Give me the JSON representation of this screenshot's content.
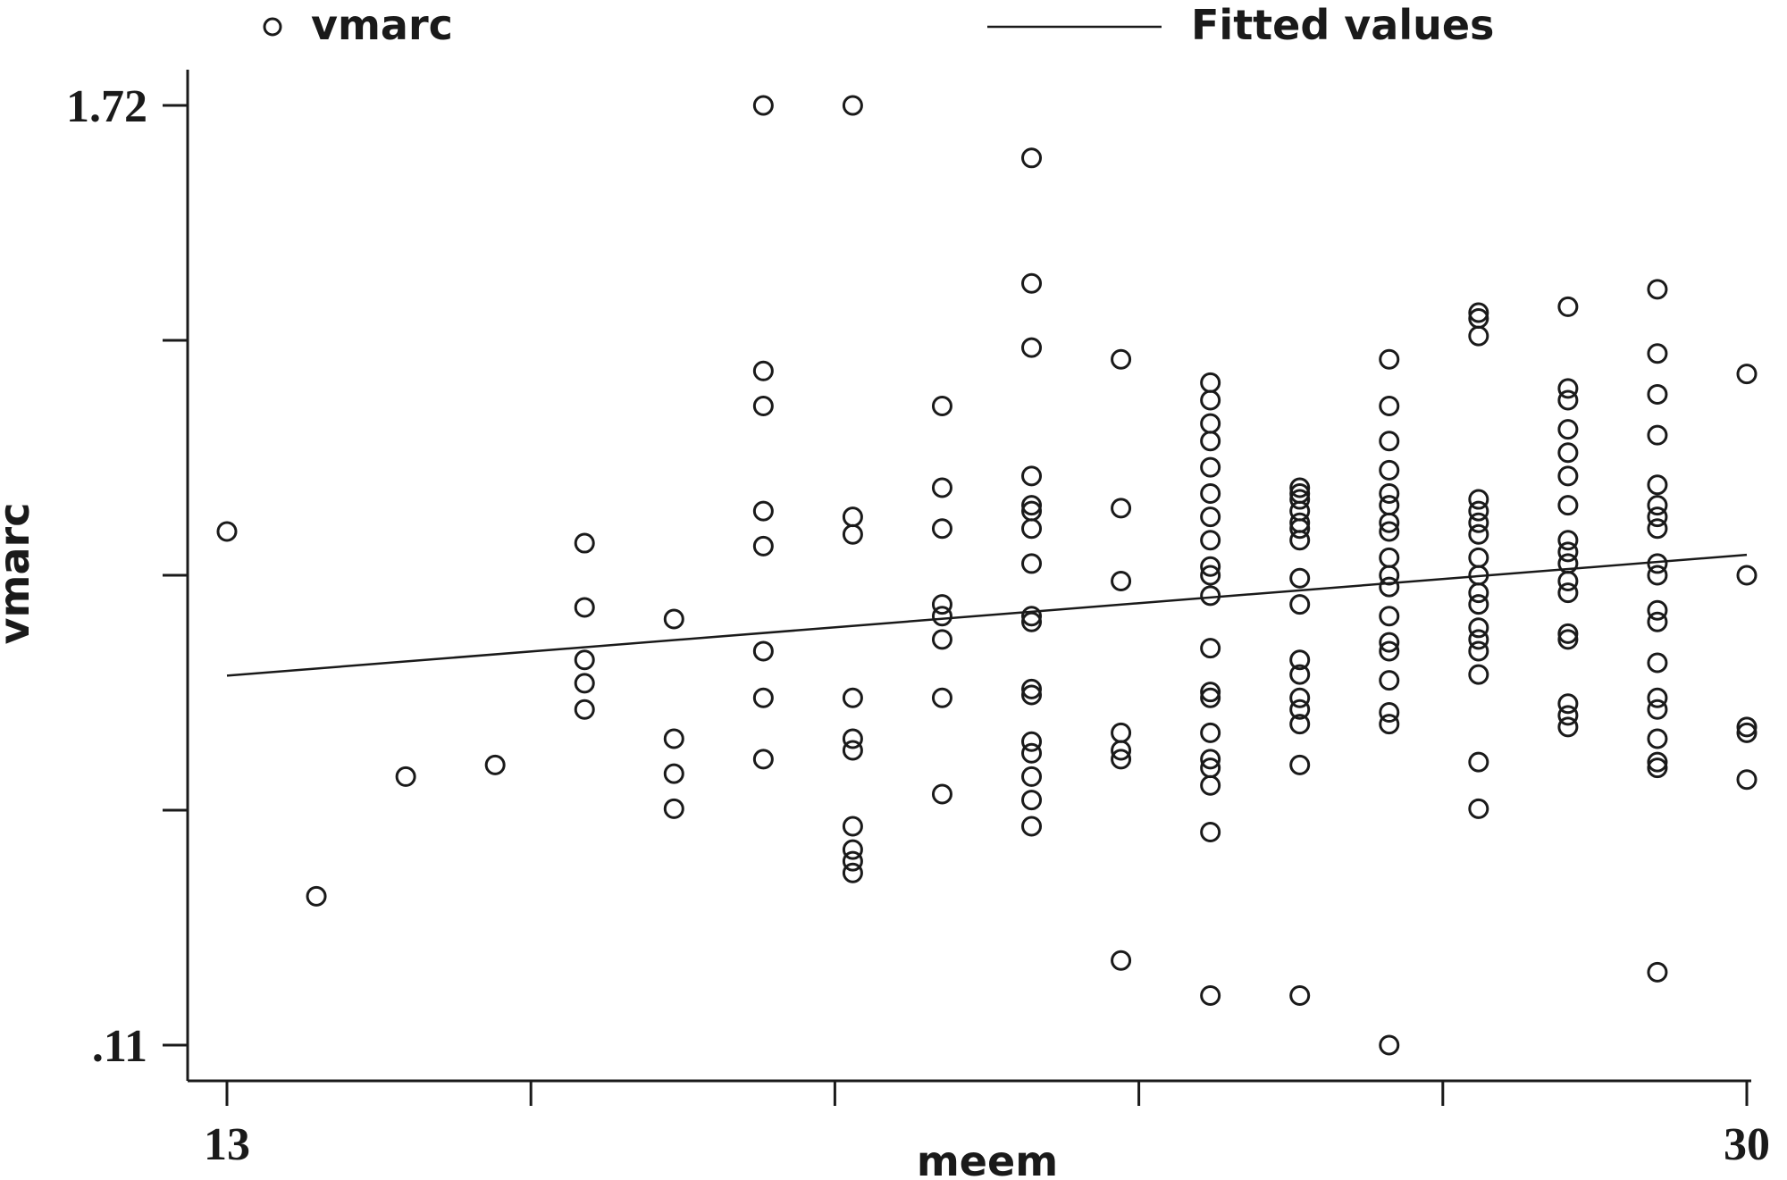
{
  "chart_data": {
    "type": "scatter",
    "xlabel": "meem",
    "ylabel": "vmarc",
    "xlim": [
      12.9,
      30.1
    ],
    "ylim": [
      0.11,
      1.72
    ],
    "x_ticks": [
      13,
      16.4,
      19.8,
      23.2,
      26.6,
      30
    ],
    "x_tick_labels": [
      "13",
      "",
      "",
      "",
      "",
      "30"
    ],
    "y_ticks": [
      0.11,
      0.5125,
      0.915,
      1.3175,
      1.72
    ],
    "y_tick_labels": [
      ".11",
      "",
      "",
      "",
      "1.72"
    ],
    "legend_position": "top",
    "series": [
      {
        "name": "vmarc",
        "kind": "markers",
        "points": [
          [
            13,
            0.99
          ],
          [
            14,
            0.365
          ],
          [
            15,
            0.57
          ],
          [
            16,
            0.59
          ],
          [
            17,
            0.97
          ],
          [
            17,
            0.86
          ],
          [
            17,
            0.77
          ],
          [
            17,
            0.73
          ],
          [
            17,
            0.685
          ],
          [
            18,
            0.84
          ],
          [
            18,
            0.635
          ],
          [
            18,
            0.575
          ],
          [
            18,
            0.515
          ],
          [
            19,
            1.72
          ],
          [
            19,
            1.265
          ],
          [
            19,
            1.205
          ],
          [
            19,
            1.025
          ],
          [
            19,
            0.965
          ],
          [
            19,
            0.785
          ],
          [
            19,
            0.705
          ],
          [
            19,
            0.6
          ],
          [
            20,
            1.72
          ],
          [
            20,
            1.015
          ],
          [
            20,
            0.985
          ],
          [
            20,
            0.705
          ],
          [
            20,
            0.635
          ],
          [
            20,
            0.615
          ],
          [
            20,
            0.485
          ],
          [
            20,
            0.445
          ],
          [
            20,
            0.425
          ],
          [
            20,
            0.405
          ],
          [
            21,
            1.205
          ],
          [
            21,
            1.065
          ],
          [
            21,
            0.995
          ],
          [
            21,
            0.865
          ],
          [
            21,
            0.845
          ],
          [
            21,
            0.805
          ],
          [
            21,
            0.705
          ],
          [
            21,
            0.54
          ],
          [
            22,
            1.63
          ],
          [
            22,
            1.415
          ],
          [
            22,
            1.305
          ],
          [
            22,
            1.085
          ],
          [
            22,
            1.025
          ],
          [
            22,
            1.035
          ],
          [
            22,
            0.995
          ],
          [
            22,
            0.935
          ],
          [
            22,
            0.845
          ],
          [
            22,
            0.835
          ],
          [
            22,
            0.72
          ],
          [
            22,
            0.71
          ],
          [
            22,
            0.63
          ],
          [
            22,
            0.61
          ],
          [
            22,
            0.57
          ],
          [
            22,
            0.53
          ],
          [
            22,
            0.485
          ],
          [
            23,
            1.285
          ],
          [
            23,
            1.03
          ],
          [
            23,
            0.905
          ],
          [
            23,
            0.645
          ],
          [
            23,
            0.615
          ],
          [
            23,
            0.6
          ],
          [
            23,
            0.255
          ],
          [
            24,
            1.245
          ],
          [
            24,
            1.215
          ],
          [
            24,
            1.175
          ],
          [
            24,
            1.145
          ],
          [
            24,
            1.1
          ],
          [
            24,
            1.055
          ],
          [
            24,
            1.015
          ],
          [
            24,
            0.975
          ],
          [
            24,
            0.93
          ],
          [
            24,
            0.915
          ],
          [
            24,
            0.88
          ],
          [
            24,
            0.79
          ],
          [
            24,
            0.715
          ],
          [
            24,
            0.705
          ],
          [
            24,
            0.645
          ],
          [
            24,
            0.6
          ],
          [
            24,
            0.585
          ],
          [
            24,
            0.555
          ],
          [
            24,
            0.475
          ],
          [
            24,
            0.195
          ],
          [
            25,
            1.065
          ],
          [
            25,
            1.055
          ],
          [
            25,
            1.045
          ],
          [
            25,
            1.025
          ],
          [
            25,
            1.005
          ],
          [
            25,
            0.975
          ],
          [
            25,
            0.995
          ],
          [
            25,
            0.91
          ],
          [
            25,
            0.865
          ],
          [
            25,
            0.77
          ],
          [
            25,
            0.745
          ],
          [
            25,
            0.705
          ],
          [
            25,
            0.685
          ],
          [
            25,
            0.66
          ],
          [
            25,
            0.59
          ],
          [
            25,
            0.195
          ],
          [
            26,
            1.285
          ],
          [
            26,
            1.205
          ],
          [
            26,
            1.145
          ],
          [
            26,
            1.095
          ],
          [
            26,
            1.055
          ],
          [
            26,
            1.035
          ],
          [
            26,
            1.005
          ],
          [
            26,
            0.99
          ],
          [
            26,
            0.945
          ],
          [
            26,
            0.915
          ],
          [
            26,
            0.895
          ],
          [
            26,
            0.845
          ],
          [
            26,
            0.8
          ],
          [
            26,
            0.785
          ],
          [
            26,
            0.735
          ],
          [
            26,
            0.66
          ],
          [
            26,
            0.68
          ],
          [
            26,
            0.11
          ],
          [
            27,
            1.365
          ],
          [
            27,
            1.355
          ],
          [
            27,
            1.325
          ],
          [
            27,
            1.045
          ],
          [
            27,
            1.025
          ],
          [
            27,
            1.005
          ],
          [
            27,
            0.985
          ],
          [
            27,
            0.945
          ],
          [
            27,
            0.915
          ],
          [
            27,
            0.885
          ],
          [
            27,
            0.865
          ],
          [
            27,
            0.825
          ],
          [
            27,
            0.805
          ],
          [
            27,
            0.785
          ],
          [
            27,
            0.745
          ],
          [
            27,
            0.595
          ],
          [
            27,
            0.515
          ],
          [
            28,
            1.375
          ],
          [
            28,
            1.235
          ],
          [
            28,
            1.215
          ],
          [
            28,
            1.165
          ],
          [
            28,
            1.125
          ],
          [
            28,
            1.085
          ],
          [
            28,
            1.035
          ],
          [
            28,
            0.975
          ],
          [
            28,
            0.955
          ],
          [
            28,
            0.935
          ],
          [
            28,
            0.905
          ],
          [
            28,
            0.885
          ],
          [
            28,
            0.815
          ],
          [
            28,
            0.805
          ],
          [
            28,
            0.695
          ],
          [
            28,
            0.675
          ],
          [
            28,
            0.655
          ],
          [
            29,
            1.405
          ],
          [
            29,
            1.295
          ],
          [
            29,
            1.225
          ],
          [
            29,
            1.155
          ],
          [
            29,
            1.07
          ],
          [
            29,
            1.035
          ],
          [
            29,
            1.015
          ],
          [
            29,
            0.995
          ],
          [
            29,
            0.935
          ],
          [
            29,
            0.915
          ],
          [
            29,
            0.855
          ],
          [
            29,
            0.835
          ],
          [
            29,
            0.765
          ],
          [
            29,
            0.705
          ],
          [
            29,
            0.685
          ],
          [
            29,
            0.635
          ],
          [
            29,
            0.595
          ],
          [
            29,
            0.585
          ],
          [
            29,
            0.235
          ],
          [
            30,
            1.26
          ],
          [
            30,
            0.915
          ],
          [
            30,
            0.655
          ],
          [
            30,
            0.645
          ],
          [
            30,
            0.565
          ]
        ]
      },
      {
        "name": "Fitted values",
        "kind": "line",
        "points": [
          [
            13,
            0.743
          ],
          [
            30,
            0.95
          ]
        ]
      }
    ]
  }
}
